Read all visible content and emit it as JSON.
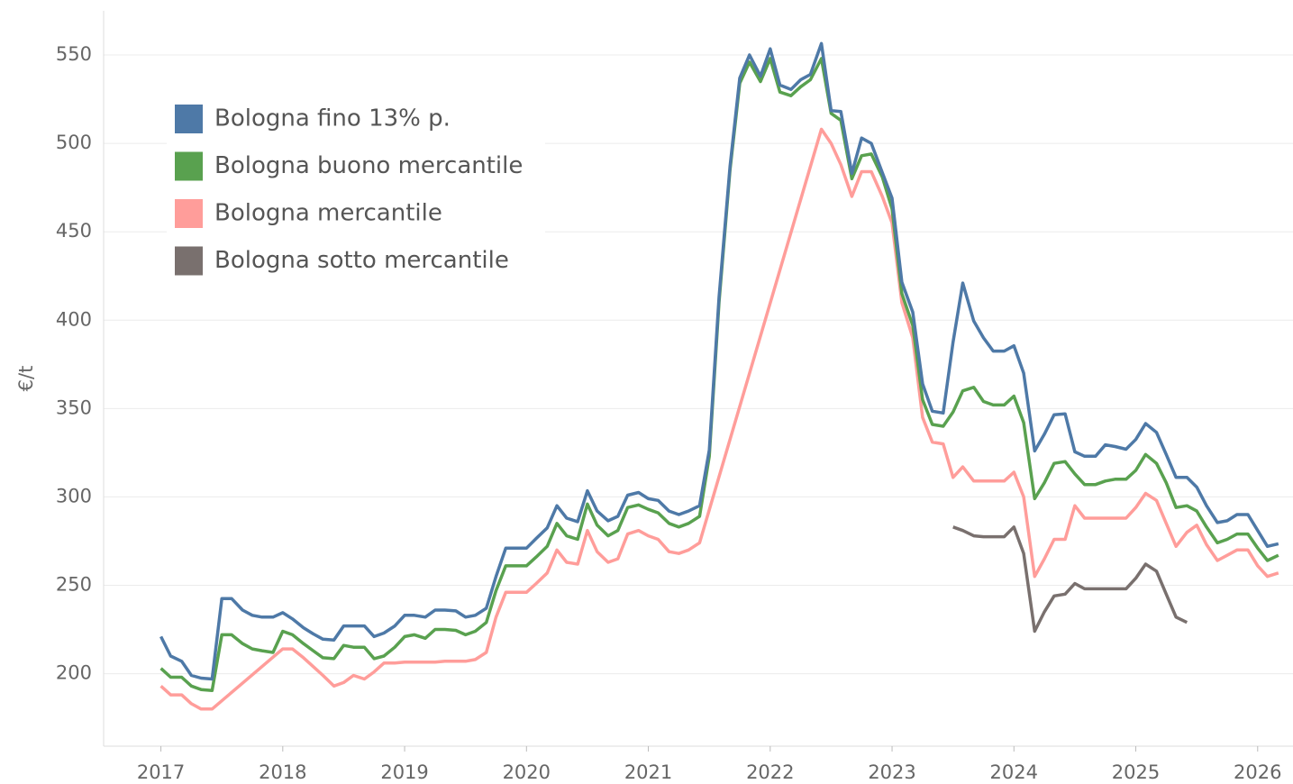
{
  "chart_data": {
    "type": "line",
    "y_label": "€/t",
    "grid": true,
    "legend": "upper left",
    "xlim": [
      2016.53,
      2026.29
    ],
    "ylim": [
      159,
      575
    ],
    "xticks": [
      2017,
      2018,
      2019,
      2020,
      2021,
      2022,
      2023,
      2024,
      2025,
      2026
    ],
    "yticks": [
      200,
      250,
      300,
      350,
      400,
      450,
      500,
      550
    ],
    "x": [
      2017,
      2017.08,
      2017.17,
      2017.25,
      2017.33,
      2017.42,
      2017.5,
      2017.58,
      2017.67,
      2017.75,
      2017.83,
      2017.92,
      2018,
      2018.08,
      2018.17,
      2018.25,
      2018.33,
      2018.42,
      2018.5,
      2018.58,
      2018.67,
      2018.75,
      2018.83,
      2018.92,
      2019,
      2019.08,
      2019.17,
      2019.25,
      2019.33,
      2019.42,
      2019.5,
      2019.58,
      2019.67,
      2019.75,
      2019.83,
      2019.92,
      2020,
      2020.08,
      2020.17,
      2020.25,
      2020.33,
      2020.42,
      2020.5,
      2020.58,
      2020.67,
      2020.75,
      2020.83,
      2020.92,
      2021,
      2021.08,
      2021.17,
      2021.25,
      2021.33,
      2021.42,
      2021.5,
      2021.58,
      2021.67,
      2021.75,
      2021.83,
      2021.92,
      2022,
      2022.08,
      2022.17,
      2022.25,
      2022.33,
      2022.42,
      2022.5,
      2022.58,
      2022.67,
      2022.75,
      2022.83,
      2022.92,
      2023,
      2023.08,
      2023.17,
      2023.25,
      2023.33,
      2023.42,
      2023.5,
      2023.58,
      2023.67,
      2023.75,
      2023.83,
      2023.92,
      2024,
      2024.08,
      2024.17,
      2024.25,
      2024.33,
      2024.42,
      2024.5,
      2024.58,
      2024.67,
      2024.75,
      2024.83,
      2024.92,
      2025,
      2025.08,
      2025.17,
      2025.25,
      2025.33,
      2025.42,
      2025.5,
      2025.58,
      2025.67,
      2025.75,
      2025.83,
      2025.92,
      2026,
      2026.08,
      2026.17
    ],
    "series": [
      {
        "name": "Bologna fino 13% p.",
        "color": "#4e79a7",
        "values": [
          221,
          210,
          207,
          199,
          197.5,
          197,
          242.5,
          242.5,
          236,
          233,
          232,
          232,
          234.5,
          231,
          226,
          222.5,
          219.5,
          219,
          227,
          227,
          227,
          221,
          223,
          227,
          233,
          233,
          232,
          236,
          236,
          235.5,
          232,
          233,
          237,
          255,
          271,
          271,
          271,
          276.5,
          282.5,
          295,
          288,
          286,
          303.5,
          292,
          286.5,
          289,
          301,
          302.5,
          299,
          298,
          292,
          290,
          292,
          295,
          326.5,
          413,
          487,
          537,
          550,
          538,
          553.5,
          533,
          530.5,
          536,
          539,
          556.5,
          518.5,
          518,
          483,
          503,
          500,
          483.5,
          469,
          421.5,
          404.5,
          364,
          348.5,
          347.5,
          387.5,
          421,
          399.5,
          390,
          382.5,
          382.5,
          385.5,
          370,
          326,
          335.5,
          346.5,
          347,
          325.5,
          323,
          323,
          329.5,
          328.5,
          327,
          332.5,
          341.5,
          336.5,
          324,
          311,
          311,
          305.5,
          295,
          285.5,
          286.5,
          290,
          290,
          281,
          272,
          273.5
        ]
      },
      {
        "name": "Bologna buono mercantile",
        "color": "#59a14f",
        "values": [
          203,
          198,
          198,
          193,
          191,
          190.5,
          222,
          222,
          217,
          214,
          213,
          212,
          224,
          222,
          217,
          213,
          209,
          208.5,
          216,
          215,
          215,
          208.5,
          210,
          215,
          221,
          222,
          220,
          225,
          225,
          224.5,
          222,
          224,
          229,
          247,
          261,
          261,
          261,
          266,
          272,
          285,
          278,
          276,
          296,
          284,
          278,
          281,
          294,
          295.5,
          293,
          291,
          285,
          283,
          285,
          289,
          323,
          410,
          485,
          534,
          546,
          535,
          548,
          529,
          527,
          532,
          536,
          548,
          517,
          513,
          480,
          493,
          494,
          481,
          463,
          415,
          397,
          355,
          341,
          340,
          348,
          360,
          362,
          354,
          352,
          352,
          357,
          342,
          299,
          308,
          319,
          320,
          313,
          307,
          307,
          309,
          310,
          310,
          315,
          324,
          319,
          308,
          294,
          295,
          292,
          283,
          274,
          276,
          279,
          279,
          271,
          264,
          267
        ]
      },
      {
        "name": "Bologna mercantile",
        "color": "#ff9d9a",
        "x": [
          2017,
          2017.08,
          2017.17,
          2017.25,
          2017.33,
          2017.42,
          2018,
          2018.08,
          2018.17,
          2018.25,
          2018.33,
          2018.42,
          2018.5,
          2018.58,
          2018.67,
          2018.75,
          2018.83,
          2018.92,
          2019,
          2019.08,
          2019.17,
          2019.25,
          2019.33,
          2019.42,
          2019.5,
          2019.58,
          2019.67,
          2019.75,
          2019.83,
          2019.92,
          2020,
          2020.08,
          2020.17,
          2020.25,
          2020.33,
          2020.42,
          2020.5,
          2020.58,
          2020.67,
          2020.75,
          2020.83,
          2020.92,
          2021,
          2021.08,
          2021.17,
          2021.25,
          2021.33,
          2021.42,
          2022.42,
          2022.5,
          2022.58,
          2022.67,
          2022.75,
          2022.83,
          2022.92,
          2023,
          2023.08,
          2023.17,
          2023.25,
          2023.33,
          2023.42,
          2023.5,
          2023.58,
          2023.67,
          2023.75,
          2023.83,
          2023.92,
          2024,
          2024.08,
          2024.17,
          2024.25,
          2024.33,
          2024.42,
          2024.5,
          2024.58,
          2024.67,
          2024.75,
          2024.83,
          2024.92,
          2025,
          2025.08,
          2025.17,
          2025.25,
          2025.33,
          2025.42,
          2025.5,
          2025.58,
          2025.67,
          2025.75,
          2025.83,
          2025.92,
          2026,
          2026.08,
          2026.17
        ],
        "values": [
          193,
          188,
          188,
          183,
          180,
          180,
          214,
          214,
          209,
          204,
          199,
          193,
          195,
          199,
          197,
          201,
          206,
          206,
          206.5,
          206.5,
          206.5,
          206.5,
          207,
          207,
          207,
          208,
          212,
          232,
          246,
          246,
          246,
          251,
          257,
          270,
          263,
          262,
          281,
          269,
          263,
          265,
          279,
          281,
          278,
          276,
          269,
          268,
          270,
          274,
          508,
          500,
          488,
          470,
          484,
          484,
          470,
          455,
          410,
          390,
          345,
          331,
          330,
          311,
          317,
          309,
          309,
          309,
          309,
          314,
          300,
          255,
          265,
          276,
          276,
          295,
          288,
          288,
          288,
          288,
          288,
          294,
          302,
          298,
          285,
          272,
          280,
          284,
          273,
          264,
          267,
          270,
          270,
          261,
          255,
          257
        ]
      },
      {
        "name": "Bologna sotto mercantile",
        "color": "#79706e",
        "x": [
          2023.5,
          2023.58,
          2023.67,
          2023.75,
          2023.83,
          2023.92,
          2024,
          2024.08,
          2024.17,
          2024.25,
          2024.33,
          2024.42,
          2024.5,
          2024.58,
          2024.67,
          2024.75,
          2024.83,
          2024.92,
          2025,
          2025.08,
          2025.17,
          2025.25,
          2025.33,
          2025.42
        ],
        "values": [
          283,
          281,
          278,
          277.5,
          277.5,
          277.5,
          283,
          268,
          224,
          235,
          244,
          245,
          251,
          248,
          248,
          248,
          248,
          248,
          254,
          262,
          258,
          245,
          232,
          229
        ]
      }
    ]
  }
}
